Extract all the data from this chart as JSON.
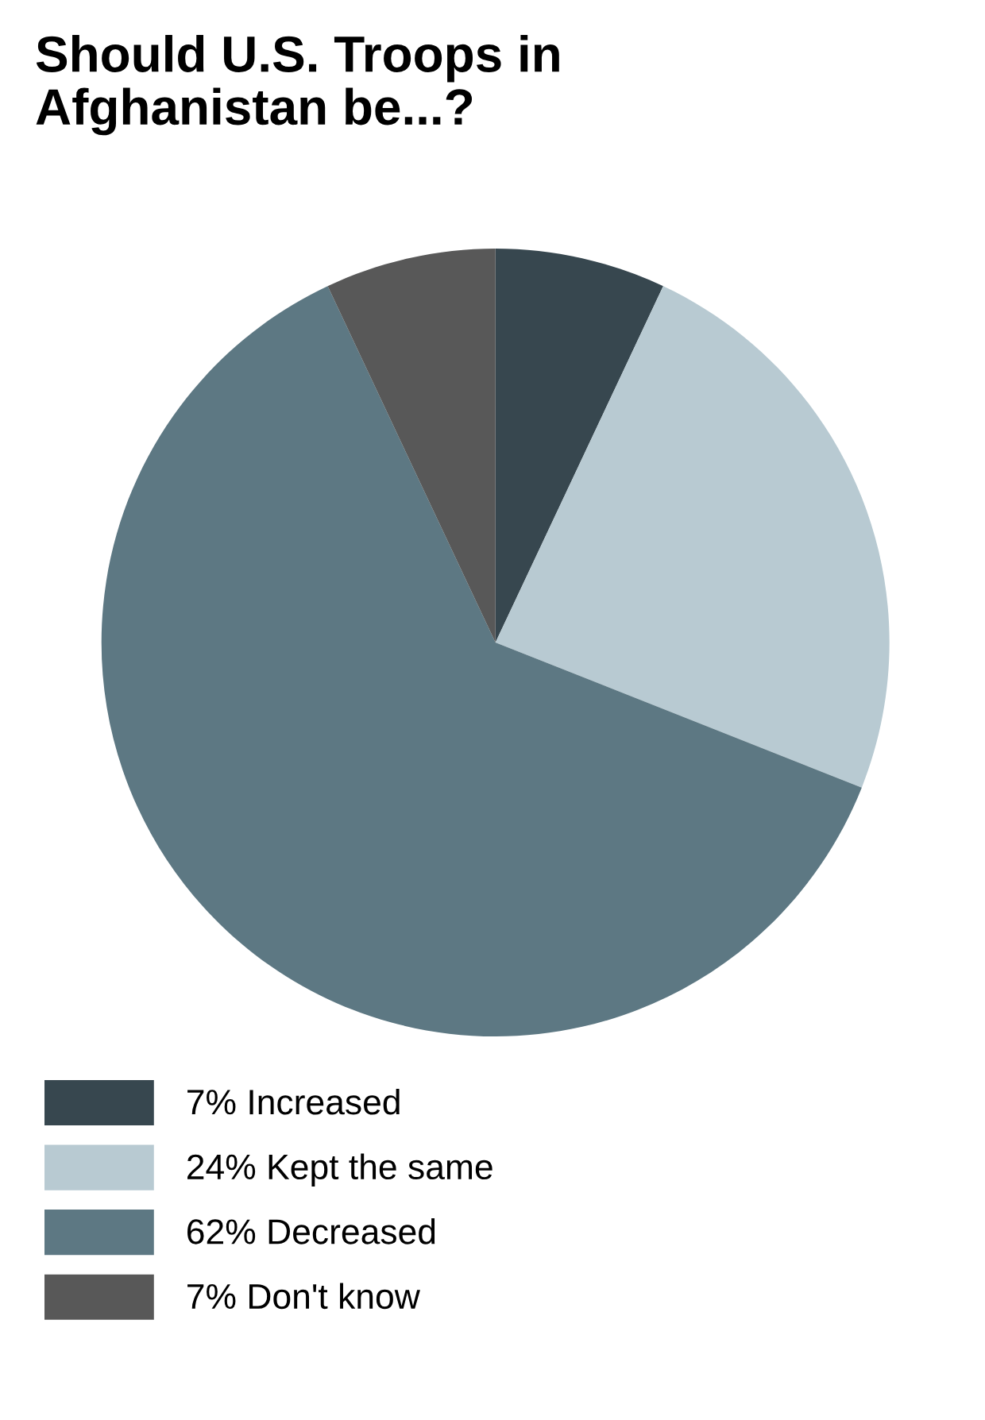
{
  "chart_data": {
    "type": "pie",
    "title": "Should U.S. Troops in\nAfghanistan be...?",
    "categories": [
      "Increased",
      "Kept the same",
      "Decreased",
      "Don't know"
    ],
    "values": [
      7,
      24,
      62,
      7
    ],
    "value_labels": [
      "7%",
      "24%",
      "62%",
      "7%"
    ],
    "colors": [
      "#37474f",
      "#b8cad2",
      "#5d7883",
      "#585858"
    ],
    "legend": "bottom"
  }
}
